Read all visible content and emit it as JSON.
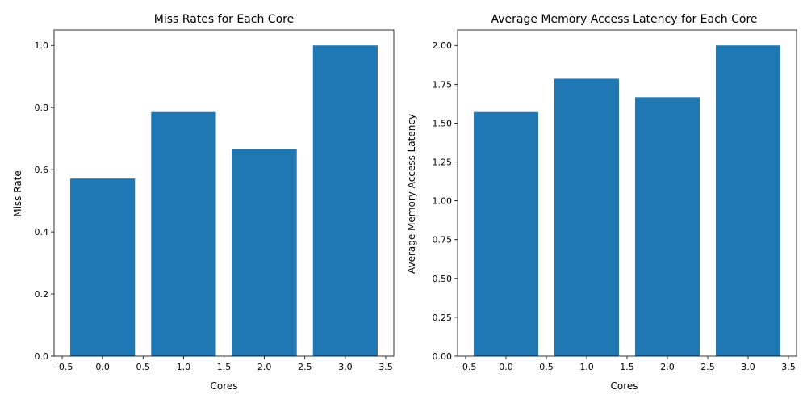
{
  "chart_data": [
    {
      "type": "bar",
      "title": "Miss Rates for Each Core",
      "xlabel": "Cores",
      "ylabel": "Miss Rate",
      "x": [
        0,
        1,
        2,
        3
      ],
      "values": [
        0.5714,
        0.7857,
        0.6667,
        1.0
      ],
      "bar_width": 0.8,
      "xlim": [
        -0.6,
        3.6
      ],
      "ylim": [
        0,
        1.05
      ],
      "xticks": [
        -0.5,
        0.0,
        0.5,
        1.0,
        1.5,
        2.0,
        2.5,
        3.0,
        3.5
      ],
      "xtick_labels": [
        "−0.5",
        "0.0",
        "0.5",
        "1.0",
        "1.5",
        "2.0",
        "2.5",
        "3.0",
        "3.5"
      ],
      "yticks": [
        0.0,
        0.2,
        0.4,
        0.6,
        0.8,
        1.0
      ],
      "ytick_labels": [
        "0.0",
        "0.2",
        "0.4",
        "0.6",
        "0.8",
        "1.0"
      ],
      "grid": false,
      "bar_color": "#1f77b4"
    },
    {
      "type": "bar",
      "title": "Average Memory Access Latency for Each Core",
      "xlabel": "Cores",
      "ylabel": "Average Memory Access Latency",
      "x": [
        0,
        1,
        2,
        3
      ],
      "values": [
        1.5714,
        1.7857,
        1.6667,
        2.0
      ],
      "bar_width": 0.8,
      "xlim": [
        -0.6,
        3.6
      ],
      "ylim": [
        0,
        2.1
      ],
      "xticks": [
        -0.5,
        0.0,
        0.5,
        1.0,
        1.5,
        2.0,
        2.5,
        3.0,
        3.5
      ],
      "xtick_labels": [
        "−0.5",
        "0.0",
        "0.5",
        "1.0",
        "1.5",
        "2.0",
        "2.5",
        "3.0",
        "3.5"
      ],
      "yticks": [
        0.0,
        0.25,
        0.5,
        0.75,
        1.0,
        1.25,
        1.5,
        1.75,
        2.0
      ],
      "ytick_labels": [
        "0.00",
        "0.25",
        "0.50",
        "0.75",
        "1.00",
        "1.25",
        "1.50",
        "1.75",
        "2.00"
      ],
      "grid": false,
      "bar_color": "#1f77b4"
    }
  ]
}
